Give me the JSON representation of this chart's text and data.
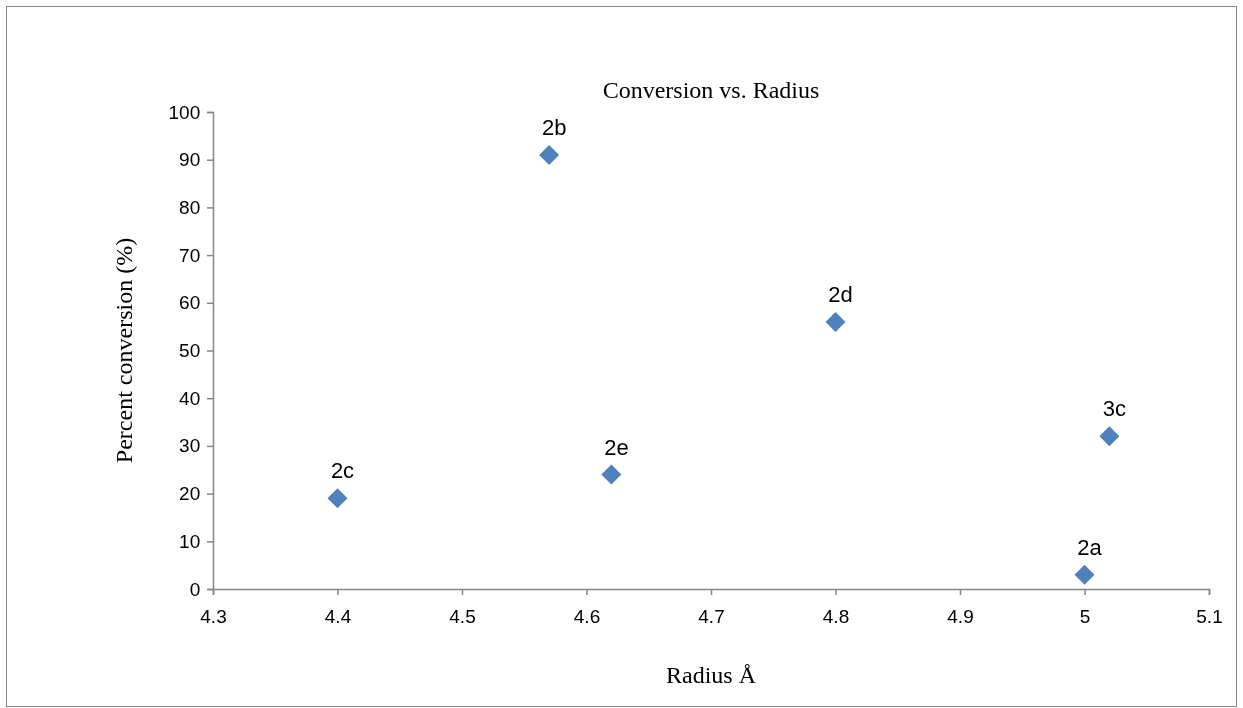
{
  "chart_data": {
    "type": "scatter",
    "title": "Conversion vs. Radius",
    "xlabel": "Radius Å",
    "ylabel": "Percent conversion (%)",
    "x": [
      4.4,
      4.57,
      4.62,
      4.8,
      5.0,
      5.02
    ],
    "series": [
      {
        "color": "#4f81bd",
        "values": [
          19,
          91,
          24,
          56,
          3,
          32
        ]
      }
    ],
    "xlim": [
      4.3,
      5.1
    ],
    "xticks": [
      4.3,
      4.4,
      4.5,
      4.6,
      4.7,
      4.8,
      4.9,
      5,
      5.1
    ],
    "ylim": [
      0,
      100
    ],
    "yticks": [
      0,
      10,
      20,
      30,
      40,
      50,
      60,
      70,
      80,
      90,
      100
    ],
    "marker": "diamond",
    "grid": false,
    "annotations": [
      {
        "text": "2c",
        "x": 4.4,
        "y": 19
      },
      {
        "text": "2b",
        "x": 4.57,
        "y": 91
      },
      {
        "text": "2e",
        "x": 4.62,
        "y": 24
      },
      {
        "text": "2d",
        "x": 4.8,
        "y": 56
      },
      {
        "text": "2a",
        "x": 5.0,
        "y": 3
      },
      {
        "text": "3c",
        "x": 5.02,
        "y": 32
      }
    ]
  }
}
